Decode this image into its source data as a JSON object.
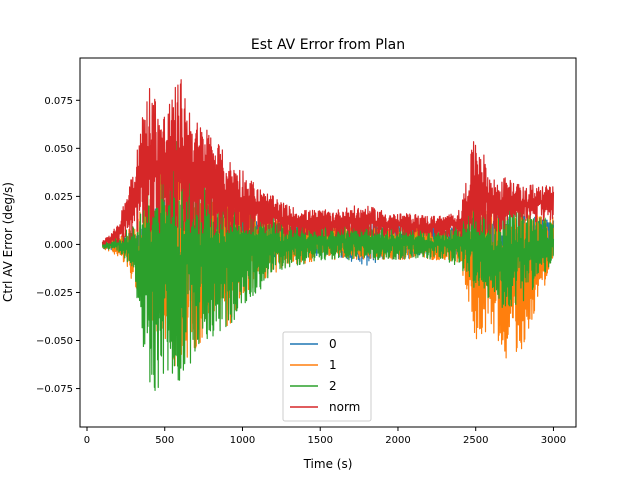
{
  "chart_data": {
    "type": "line",
    "title": "Est AV Error from Plan",
    "xlabel": "Time (s)",
    "ylabel": "Ctrl AV Error (deg/s)",
    "xlim": [
      -45,
      3145
    ],
    "ylim": [
      -0.095,
      0.097
    ],
    "xticks": [
      0,
      500,
      1000,
      1500,
      2000,
      2500,
      3000
    ],
    "xtick_labels": [
      "0",
      "500",
      "1000",
      "1500",
      "2000",
      "2500",
      "3000"
    ],
    "yticks": [
      -0.075,
      -0.05,
      -0.025,
      0.0,
      0.025,
      0.05,
      0.075
    ],
    "ytick_labels": [
      "−0.075",
      "−0.050",
      "−0.025",
      "0.000",
      "0.025",
      "0.050",
      "0.075"
    ],
    "grid": false,
    "legend_position": "lower-center",
    "series": [
      {
        "name": "0",
        "color": "#1f77b4",
        "x": [
          100,
          200,
          300,
          400,
          500,
          600,
          700,
          800,
          900,
          1000,
          1100,
          1200,
          1300,
          1400,
          1500,
          1600,
          1700,
          1800,
          1900,
          2000,
          2100,
          2200,
          2300,
          2400,
          2500,
          2600,
          2700,
          2800,
          2900,
          3000
        ],
        "upper": [
          0.002,
          0.004,
          0.007,
          0.02,
          0.03,
          0.028,
          0.025,
          0.022,
          0.02,
          0.015,
          0.012,
          0.012,
          0.01,
          0.009,
          0.01,
          0.009,
          0.012,
          0.012,
          0.012,
          0.011,
          0.01,
          0.01,
          0.009,
          0.01,
          0.015,
          0.018,
          0.015,
          0.015,
          0.014,
          0.015
        ],
        "lower": [
          -0.002,
          -0.004,
          -0.007,
          -0.02,
          -0.03,
          -0.028,
          -0.025,
          -0.022,
          -0.02,
          -0.015,
          -0.01,
          -0.008,
          -0.007,
          -0.006,
          -0.006,
          -0.006,
          -0.01,
          -0.012,
          -0.008,
          -0.008,
          -0.007,
          -0.006,
          -0.006,
          -0.006,
          -0.012,
          -0.012,
          -0.012,
          -0.012,
          -0.01,
          -0.008
        ]
      },
      {
        "name": "1",
        "color": "#ff7f0e",
        "x": [
          100,
          200,
          300,
          400,
          500,
          600,
          700,
          800,
          900,
          1000,
          1100,
          1200,
          1300,
          1400,
          1500,
          1600,
          1700,
          1800,
          1900,
          2000,
          2100,
          2200,
          2300,
          2400,
          2500,
          2600,
          2700,
          2800,
          2900,
          3000
        ],
        "upper": [
          0.002,
          0.006,
          0.01,
          0.035,
          0.05,
          0.045,
          0.04,
          0.035,
          0.03,
          0.025,
          0.02,
          0.015,
          0.012,
          0.012,
          0.012,
          0.01,
          0.01,
          0.01,
          0.01,
          0.01,
          0.01,
          0.008,
          0.008,
          0.01,
          0.02,
          0.02,
          0.018,
          0.018,
          0.015,
          0.015
        ],
        "lower": [
          -0.002,
          -0.006,
          -0.02,
          -0.04,
          -0.055,
          -0.07,
          -0.055,
          -0.045,
          -0.045,
          -0.03,
          -0.02,
          -0.015,
          -0.012,
          -0.01,
          -0.008,
          -0.008,
          -0.008,
          -0.008,
          -0.008,
          -0.008,
          -0.008,
          -0.008,
          -0.008,
          -0.01,
          -0.05,
          -0.045,
          -0.06,
          -0.055,
          -0.03,
          -0.01
        ]
      },
      {
        "name": "2",
        "color": "#2ca02c",
        "x": [
          100,
          200,
          300,
          400,
          500,
          600,
          700,
          800,
          900,
          1000,
          1100,
          1200,
          1300,
          1400,
          1500,
          1600,
          1700,
          1800,
          1900,
          2000,
          2100,
          2200,
          2300,
          2400,
          2500,
          2600,
          2700,
          2800,
          2900,
          3000
        ],
        "upper": [
          0.002,
          0.005,
          0.01,
          0.04,
          0.055,
          0.06,
          0.045,
          0.04,
          0.035,
          0.025,
          0.02,
          0.015,
          0.012,
          0.012,
          0.012,
          0.01,
          0.012,
          0.012,
          0.01,
          0.01,
          0.01,
          0.008,
          0.01,
          0.012,
          0.025,
          0.02,
          0.022,
          0.02,
          0.015,
          0.012
        ],
        "lower": [
          -0.002,
          -0.005,
          -0.012,
          -0.085,
          -0.07,
          -0.075,
          -0.055,
          -0.05,
          -0.045,
          -0.035,
          -0.025,
          -0.015,
          -0.012,
          -0.01,
          -0.008,
          -0.008,
          -0.008,
          -0.008,
          -0.008,
          -0.008,
          -0.008,
          -0.008,
          -0.008,
          -0.012,
          -0.025,
          -0.03,
          -0.035,
          -0.03,
          -0.02,
          -0.01
        ]
      },
      {
        "name": "norm",
        "color": "#d62728",
        "x": [
          100,
          200,
          300,
          400,
          500,
          600,
          700,
          800,
          900,
          1000,
          1100,
          1200,
          1300,
          1400,
          1500,
          1600,
          1700,
          1800,
          1900,
          2000,
          2100,
          2200,
          2300,
          2400,
          2500,
          2600,
          2700,
          2800,
          2900,
          3000
        ],
        "upper": [
          0.002,
          0.01,
          0.045,
          0.085,
          0.07,
          0.088,
          0.065,
          0.06,
          0.045,
          0.04,
          0.03,
          0.025,
          0.02,
          0.018,
          0.018,
          0.018,
          0.02,
          0.02,
          0.018,
          0.016,
          0.016,
          0.015,
          0.015,
          0.018,
          0.06,
          0.035,
          0.035,
          0.03,
          0.032,
          0.03
        ],
        "lower": [
          0.0,
          0.001,
          0.002,
          0.005,
          0.005,
          0.005,
          0.005,
          0.005,
          0.005,
          0.005,
          0.005,
          0.005,
          0.004,
          0.004,
          0.004,
          0.004,
          0.004,
          0.004,
          0.004,
          0.004,
          0.004,
          0.004,
          0.004,
          0.004,
          0.005,
          0.005,
          0.008,
          0.01,
          0.012,
          0.012
        ]
      }
    ]
  }
}
